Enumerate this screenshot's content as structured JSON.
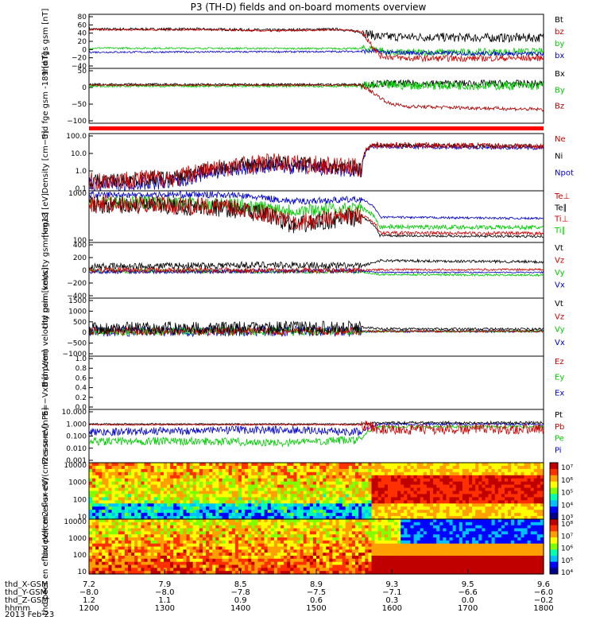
{
  "title": "P3 (TH-D) fields and on-board moments overview",
  "time_axis": {
    "ticks": [
      "1200",
      "1300",
      "1400",
      "1500",
      "1600",
      "1700",
      "1800"
    ],
    "rows": [
      {
        "label": "thd_X-GSM",
        "values": [
          "7.2",
          "7.9",
          "8.5",
          "8.9",
          "9.3",
          "9.5",
          "9.6"
        ]
      },
      {
        "label": "thd_Y-GSM",
        "values": [
          "−8.0",
          "−8.0",
          "−7.8",
          "−7.5",
          "−7.1",
          "−6.6",
          "−6.0"
        ]
      },
      {
        "label": "thd_Z-GSM",
        "values": [
          "1.2",
          "1.1",
          "0.9",
          "0.6",
          "0.3",
          "0.0",
          "−0.2"
        ]
      },
      {
        "label": "hhmm",
        "values": [
          "1200",
          "1300",
          "1400",
          "1500",
          "1600",
          "1700",
          "1800"
        ]
      }
    ],
    "date": "2013 Feb 23"
  },
  "chart_data": [
    {
      "type": "line",
      "ylabel": "thd fgs gsm [nT]",
      "ylim": [
        -40,
        80
      ],
      "yticks": [
        "80",
        "60",
        "40",
        "20",
        "0",
        "−20",
        "−40"
      ],
      "legend": [
        {
          "name": "Bt",
          "color": "#000000"
        },
        {
          "name": "bz",
          "color": "#cc0000"
        },
        {
          "name": "by",
          "color": "#00cc00"
        },
        {
          "name": "bx",
          "color": "#0000cc"
        }
      ],
      "series": [
        {
          "color": "#000000",
          "points": [
            [
              0,
              47
            ],
            [
              0.25,
              47
            ],
            [
              0.4,
              45
            ],
            [
              0.55,
              47
            ],
            [
              0.6,
              40
            ],
            [
              0.64,
              30
            ],
            [
              0.7,
              30
            ],
            [
              0.85,
              28
            ],
            [
              1,
              28
            ]
          ],
          "noise": [
            0,
            3,
            0.6,
            10
          ]
        },
        {
          "color": "#00cc00",
          "points": [
            [
              0,
              5
            ],
            [
              0.5,
              4
            ],
            [
              0.63,
              4
            ],
            [
              0.66,
              -5
            ],
            [
              1,
              -3
            ]
          ],
          "noise": [
            0,
            2,
            0.6,
            8
          ]
        },
        {
          "color": "#0000cc",
          "points": [
            [
              0,
              -4
            ],
            [
              0.5,
              -3
            ],
            [
              0.63,
              -2
            ],
            [
              0.66,
              -5
            ],
            [
              1,
              -8
            ]
          ],
          "noise": [
            0,
            2,
            0.6,
            5
          ]
        },
        {
          "color": "#cc0000",
          "points": [
            [
              0,
              46
            ],
            [
              0.25,
              46
            ],
            [
              0.4,
              43
            ],
            [
              0.55,
              46
            ],
            [
              0.6,
              42
            ],
            [
              0.64,
              -12
            ],
            [
              0.7,
              -18
            ],
            [
              0.85,
              -18
            ],
            [
              1,
              -17
            ]
          ],
          "noise": [
            0,
            2,
            0.6,
            7
          ]
        }
      ]
    },
    {
      "type": "line",
      "ylabel": "thd fge gsm -189 [nT]",
      "ylim": [
        -125,
        55
      ],
      "yticks": [
        "50",
        "0",
        "−50",
        "−100"
      ],
      "legend": [
        {
          "name": "Bx",
          "color": "#000000"
        },
        {
          "name": "By",
          "color": "#00cc00"
        },
        {
          "name": "Bz",
          "color": "#aa0000"
        }
      ],
      "series": [
        {
          "color": "#000000",
          "points": [
            [
              0,
              2
            ],
            [
              0.6,
              2
            ],
            [
              0.65,
              5
            ],
            [
              1,
              5
            ]
          ],
          "noise": [
            0,
            4,
            0.6,
            12
          ]
        },
        {
          "color": "#00cc00",
          "points": [
            [
              0,
              -3
            ],
            [
              0.6,
              -3
            ],
            [
              0.65,
              0
            ],
            [
              1,
              -2
            ]
          ],
          "noise": [
            0,
            4,
            0.6,
            15
          ]
        },
        {
          "color": "#aa0000",
          "points": [
            [
              0,
              0
            ],
            [
              0.6,
              0
            ],
            [
              0.62,
              -20
            ],
            [
              0.66,
              -60
            ],
            [
              0.7,
              -70
            ],
            [
              1,
              -80
            ]
          ],
          "noise": [
            0,
            3,
            0.6,
            6
          ]
        }
      ]
    },
    {
      "type": "line",
      "ylabel": "Density [cm−3]",
      "yscale": "log",
      "ylim": [
        0.1,
        100
      ],
      "yticks": [
        "100.0",
        "10.0",
        "1.0",
        "0.1"
      ],
      "legend": [
        {
          "name": "Ne",
          "color": "#cc0000"
        },
        {
          "name": "Ni",
          "color": "#000000"
        },
        {
          "name": "Npot",
          "color": "#0000cc"
        }
      ],
      "series": [
        {
          "color": "#0000cc",
          "points": [
            [
              0,
              0.2
            ],
            [
              0.2,
              0.3
            ],
            [
              0.4,
              2
            ],
            [
              0.6,
              1
            ],
            [
              0.62,
              20
            ],
            [
              1,
              18
            ]
          ],
          "noise": [
            0,
            0.4,
            0.6,
            0.1
          ]
        },
        {
          "color": "#000000",
          "points": [
            [
              0,
              0.3
            ],
            [
              0.2,
              0.5
            ],
            [
              0.4,
              3
            ],
            [
              0.6,
              1.5
            ],
            [
              0.62,
              25
            ],
            [
              1,
              22
            ]
          ],
          "noise": [
            0,
            0.4,
            0.6,
            0.1
          ]
        },
        {
          "color": "#cc0000",
          "points": [
            [
              0,
              0.3
            ],
            [
              0.2,
              0.5
            ],
            [
              0.4,
              3
            ],
            [
              0.6,
              1.5
            ],
            [
              0.62,
              25
            ],
            [
              1,
              22
            ]
          ],
          "noise": [
            0,
            0.5,
            0.6,
            0.15
          ]
        }
      ]
    },
    {
      "type": "line",
      "ylabel": "mag13 [eV]",
      "yscale": "log",
      "ylim": [
        30,
        6000
      ],
      "yticks": [
        "1000",
        "100"
      ],
      "legend": [
        {
          "name": "Te⊥",
          "color": "#cc0000"
        },
        {
          "name": "Te∥",
          "color": "#000000"
        },
        {
          "name": "Ti⊥",
          "color": "#cc0000"
        },
        {
          "name": "Ti∥",
          "color": "#00cc00"
        }
      ],
      "series": [
        {
          "color": "#0000cc",
          "points": [
            [
              0,
              4000
            ],
            [
              0.3,
              4000
            ],
            [
              0.45,
              2000
            ],
            [
              0.6,
              2500
            ],
            [
              0.64,
              400
            ],
            [
              1,
              350
            ]
          ],
          "noise": [
            0,
            0.15,
            0.6,
            0.05
          ]
        },
        {
          "color": "#00cc00",
          "points": [
            [
              0,
              2000
            ],
            [
              0.3,
              1500
            ],
            [
              0.45,
              800
            ],
            [
              0.6,
              1000
            ],
            [
              0.64,
              150
            ],
            [
              1,
              140
            ]
          ],
          "noise": [
            0,
            0.3,
            0.6,
            0.1
          ]
        },
        {
          "color": "#000000",
          "points": [
            [
              0,
              1500
            ],
            [
              0.3,
              1000
            ],
            [
              0.45,
              150
            ],
            [
              0.6,
              400
            ],
            [
              0.64,
              60
            ],
            [
              1,
              55
            ]
          ],
          "noise": [
            0,
            0.4,
            0.6,
            0.05
          ]
        },
        {
          "color": "#cc0000",
          "points": [
            [
              0,
              1600
            ],
            [
              0.3,
              1100
            ],
            [
              0.45,
              200
            ],
            [
              0.6,
              500
            ],
            [
              0.64,
              80
            ],
            [
              1,
              75
            ]
          ],
          "noise": [
            0,
            0.4,
            0.6,
            0.08
          ]
        }
      ]
    },
    {
      "type": "line",
      "ylabel": "thd peim velocity gsm [km/s]",
      "ylim": [
        -400,
        400
      ],
      "yticks": [
        "400",
        "200",
        "0",
        "−200",
        "−400"
      ],
      "legend": [
        {
          "name": "Vt",
          "color": "#000000"
        },
        {
          "name": "Vz",
          "color": "#cc0000"
        },
        {
          "name": "Vy",
          "color": "#00cc00"
        },
        {
          "name": "Vx",
          "color": "#0000cc"
        }
      ],
      "series": [
        {
          "color": "#000000",
          "points": [
            [
              0,
              50
            ],
            [
              0.4,
              80
            ],
            [
              0.6,
              60
            ],
            [
              0.64,
              140
            ],
            [
              1,
              120
            ]
          ],
          "noise": [
            0,
            50,
            0.6,
            20
          ]
        },
        {
          "color": "#00cc00",
          "points": [
            [
              0,
              -10
            ],
            [
              0.6,
              -20
            ],
            [
              0.64,
              -60
            ],
            [
              1,
              -70
            ]
          ],
          "noise": [
            0,
            30,
            0.6,
            15
          ]
        },
        {
          "color": "#0000cc",
          "points": [
            [
              0,
              -20
            ],
            [
              0.6,
              -10
            ],
            [
              0.64,
              -30
            ],
            [
              1,
              -30
            ]
          ],
          "noise": [
            0,
            30,
            0.6,
            10
          ]
        },
        {
          "color": "#cc0000",
          "points": [
            [
              0,
              0
            ],
            [
              0.6,
              0
            ],
            [
              0.64,
              10
            ],
            [
              1,
              10
            ]
          ],
          "noise": [
            0,
            40,
            0.6,
            15
          ]
        }
      ]
    },
    {
      "type": "line",
      "ylabel": "thd peem velocity gsm [km/s]",
      "ylim": [
        -1200,
        1600
      ],
      "yticks": [
        "1500",
        "1000",
        "500",
        "0",
        "−500",
        "−1000"
      ],
      "legend": [
        {
          "name": "Vt",
          "color": "#000000"
        },
        {
          "name": "Vz",
          "color": "#cc0000"
        },
        {
          "name": "Vy",
          "color": "#00cc00"
        },
        {
          "name": "Vx",
          "color": "#0000cc"
        }
      ],
      "series": [
        {
          "color": "#0000cc",
          "points": [
            [
              0,
              0
            ],
            [
              1,
              0
            ]
          ],
          "noise": [
            0,
            250,
            0.6,
            60
          ]
        },
        {
          "color": "#00cc00",
          "points": [
            [
              0,
              0
            ],
            [
              1,
              0
            ]
          ],
          "noise": [
            0,
            200,
            0.6,
            50
          ]
        },
        {
          "color": "#cc0000",
          "points": [
            [
              0,
              0
            ],
            [
              1,
              0
            ]
          ],
          "noise": [
            0,
            200,
            0.6,
            50
          ]
        },
        {
          "color": "#000000",
          "points": [
            [
              0,
              150
            ],
            [
              0.6,
              200
            ],
            [
              0.64,
              120
            ],
            [
              1,
              100
            ]
          ],
          "noise": [
            0,
            300,
            0.6,
            60
          ]
        }
      ]
    },
    {
      "type": "line",
      "ylabel": "E=−VxB [mV/m]",
      "ylim": [
        0,
        1
      ],
      "yticks": [
        "1.0",
        "0.8",
        "0.6",
        "0.4",
        "0.2",
        "0.0"
      ],
      "legend": [
        {
          "name": "Ez",
          "color": "#cc0000"
        },
        {
          "name": "Ey",
          "color": "#00cc00"
        },
        {
          "name": "Ex",
          "color": "#0000cc"
        }
      ],
      "series": []
    },
    {
      "type": "line",
      "ylabel": "Pressure [nPa]",
      "yscale": "log",
      "ylim": [
        0.001,
        10
      ],
      "yticks": [
        "10.000",
        "1.000",
        "0.100",
        "0.010",
        "0.001"
      ],
      "legend": [
        {
          "name": "Pt",
          "color": "#000000"
        },
        {
          "name": "Pb",
          "color": "#cc0000"
        },
        {
          "name": "Pe",
          "color": "#00cc00"
        },
        {
          "name": "Pi",
          "color": "#0000cc"
        }
      ],
      "series": [
        {
          "color": "#00cc00",
          "points": [
            [
              0,
              0.04
            ],
            [
              0.3,
              0.04
            ],
            [
              0.4,
              0.03
            ],
            [
              0.6,
              0.05
            ],
            [
              0.64,
              0.5
            ],
            [
              1,
              0.5
            ]
          ],
          "noise": [
            0,
            0.3,
            0.6,
            0.1
          ]
        },
        {
          "color": "#0000cc",
          "points": [
            [
              0,
              0.2
            ],
            [
              0.4,
              0.3
            ],
            [
              0.6,
              0.2
            ],
            [
              0.64,
              0.8
            ],
            [
              1,
              0.8
            ]
          ],
          "noise": [
            0,
            0.3,
            0.6,
            0.1
          ]
        },
        {
          "color": "#000000",
          "points": [
            [
              0,
              0.8
            ],
            [
              0.6,
              0.8
            ],
            [
              0.64,
              1.0
            ],
            [
              1,
              1.0
            ]
          ],
          "noise": [
            0,
            0.05,
            0.6,
            0.1
          ]
        },
        {
          "color": "#cc0000",
          "points": [
            [
              0,
              0.7
            ],
            [
              0.6,
              0.7
            ],
            [
              0.64,
              0.3
            ],
            [
              1,
              0.35
            ]
          ],
          "noise": [
            0,
            0.05,
            0.6,
            0.4
          ]
        }
      ]
    },
    {
      "type": "heatmap",
      "ylabel": "thd peir en eflux eV/(cm2-s-sr-eV)",
      "yscale": "log",
      "yticks": [
        "10000",
        "1000",
        "100",
        "10"
      ],
      "colorbar": [
        "10⁷",
        "10⁶",
        "10⁵",
        "10⁴",
        "10³"
      ]
    },
    {
      "type": "heatmap",
      "ylabel": "thd peer en eflux eV/(cm2-s-sr-eV)",
      "yscale": "log",
      "yticks": [
        "10000",
        "1000",
        "100",
        "10"
      ],
      "colorbar": [
        "10⁸",
        "10⁷",
        "10⁶",
        "10⁵",
        "10⁴"
      ]
    }
  ]
}
